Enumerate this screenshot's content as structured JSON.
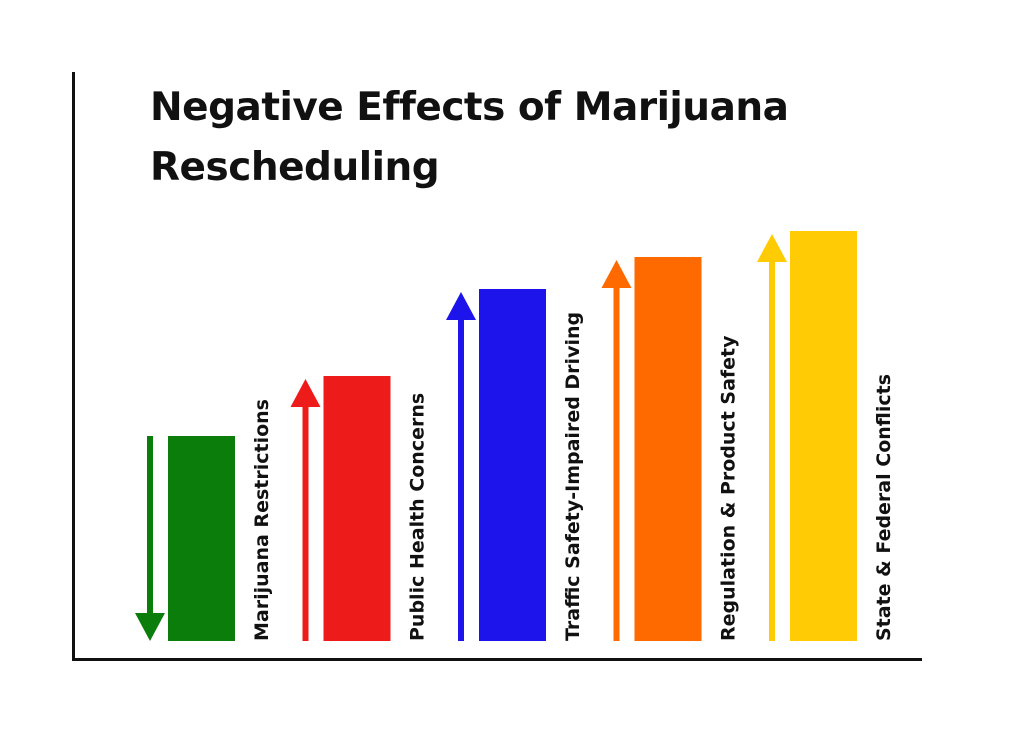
{
  "chart_data": {
    "type": "bar",
    "title": "Negative Effects of Marijuana Rescheduling",
    "xlabel": "",
    "ylabel": "",
    "categories": [
      "Marijuana Restrictions",
      "Public Health Concerns",
      "Traffic Safety-Impaired Driving",
      "Regulation & Product Safety",
      "State & Federal Conflicts"
    ],
    "values": [
      205,
      265,
      352,
      384,
      410
    ],
    "ylim": [
      0,
      430
    ],
    "arrow_directions": [
      "down",
      "up",
      "up",
      "up",
      "up"
    ],
    "colors": [
      "#0b7d0b",
      "#ee1b1b",
      "#1c14ea",
      "#ff6a00",
      "#ffcb05"
    ],
    "grid": false,
    "legend": "none"
  }
}
